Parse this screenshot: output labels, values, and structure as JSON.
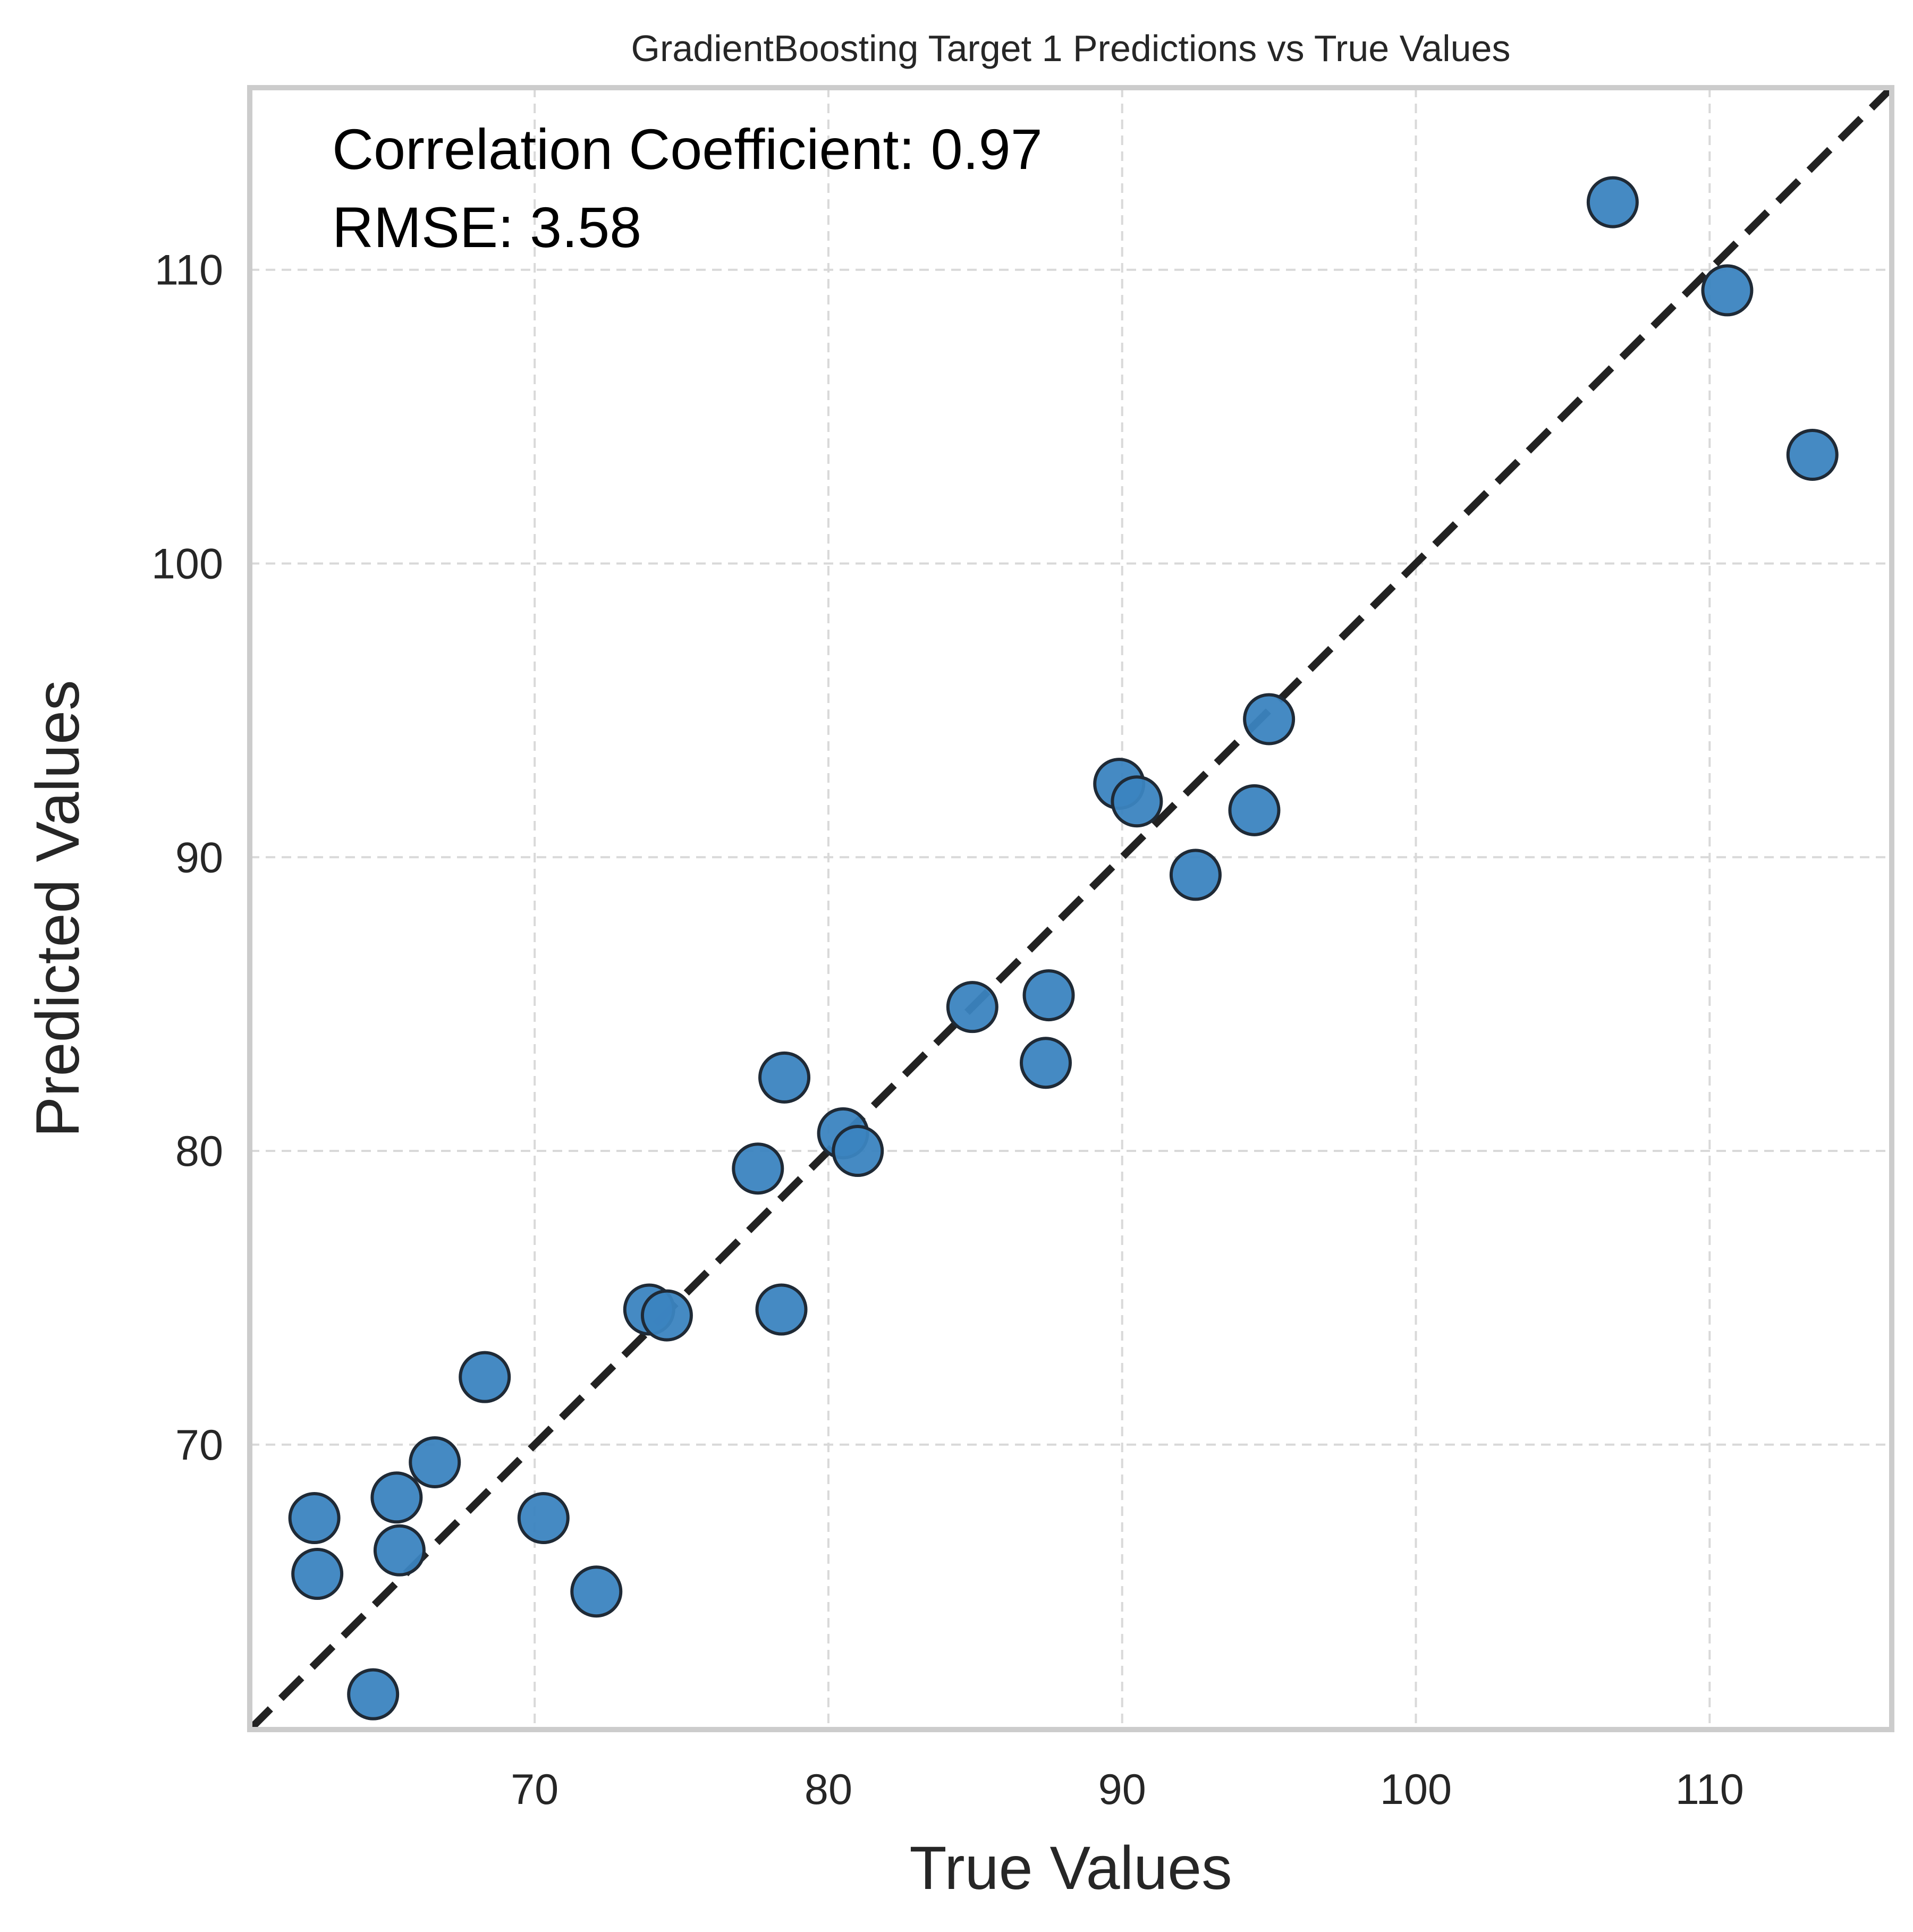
{
  "chart_data": {
    "type": "scatter",
    "title": "GradientBoosting Target 1 Predictions vs True Values",
    "xlabel": "True Values",
    "ylabel": "Predicted Values",
    "xlim": [
      60.3,
      116.2
    ],
    "ylim": [
      60.3,
      116.2
    ],
    "xticks": [
      70,
      80,
      90,
      100,
      110
    ],
    "yticks": [
      70,
      80,
      90,
      100,
      110
    ],
    "xtick_labels": [
      "70",
      "80",
      "90",
      "100",
      "110"
    ],
    "ytick_labels": [
      "70",
      "80",
      "90",
      "100",
      "110"
    ],
    "grid": true,
    "grid_style": "dashed",
    "annotations": [
      "Correlation Coefficient: 0.97",
      "RMSE: 3.58"
    ],
    "reference_line": {
      "style": "dashed",
      "color": "#222222",
      "from": [
        60.3,
        60.3
      ],
      "to": [
        116.2,
        116.2
      ]
    },
    "marker_color": "#3b84c0",
    "marker_edge": "#1f2a36",
    "x": [
      106.7,
      110.6,
      113.5,
      95.0,
      89.9,
      90.5,
      94.5,
      92.5,
      84.9,
      87.5,
      87.4,
      78.5,
      80.5,
      81.0,
      77.6,
      73.9,
      74.5,
      78.4,
      68.3,
      66.6,
      65.3,
      65.4,
      62.5,
      62.6,
      70.3,
      72.1,
      64.5
    ],
    "y": [
      112.3,
      109.3,
      103.7,
      94.7,
      92.5,
      91.9,
      91.6,
      89.4,
      84.9,
      85.3,
      83.0,
      82.5,
      80.6,
      80.0,
      79.4,
      74.6,
      74.4,
      74.6,
      72.3,
      69.4,
      68.2,
      66.4,
      67.5,
      65.6,
      67.5,
      65.0,
      61.5
    ]
  },
  "colors": {
    "frame": "#cccccc",
    "grid": "#d9d9d9",
    "background": "#ffffff"
  }
}
